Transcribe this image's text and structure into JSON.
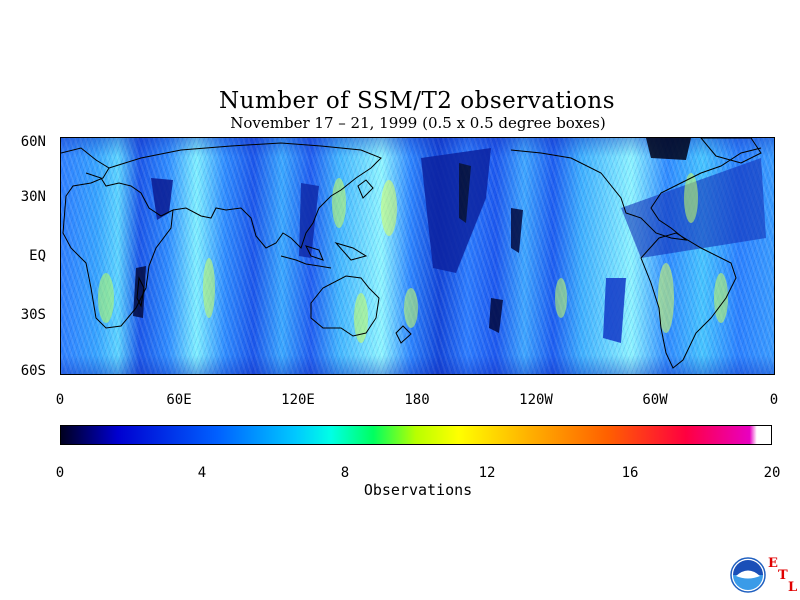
{
  "title": "Number of SSM/T2 observations",
  "subtitle": "November 17 – 21, 1999 (0.5 x 0.5 degree boxes)",
  "map": {
    "lat_labels": [
      "60N",
      "30N",
      "EQ",
      "30S",
      "60S"
    ],
    "lon_labels": [
      "0",
      "60E",
      "120E",
      "180",
      "120W",
      "60W",
      "0"
    ],
    "lat_range": [
      -60,
      60
    ],
    "lon_range": [
      0,
      360
    ]
  },
  "colorbar": {
    "labels": [
      "0",
      "4",
      "8",
      "12",
      "16",
      "20"
    ],
    "range": [
      0,
      20
    ],
    "title": "Observations",
    "colors": [
      "#000020",
      "#0000d0",
      "#0060ff",
      "#00c8ff",
      "#00ffe6",
      "#00ff60",
      "#ffff00",
      "#ff6000",
      "#ff0040",
      "#e800c0"
    ]
  },
  "logo": {
    "name": "NOAA",
    "lab_letters": [
      "E",
      "T",
      "L"
    ]
  }
}
